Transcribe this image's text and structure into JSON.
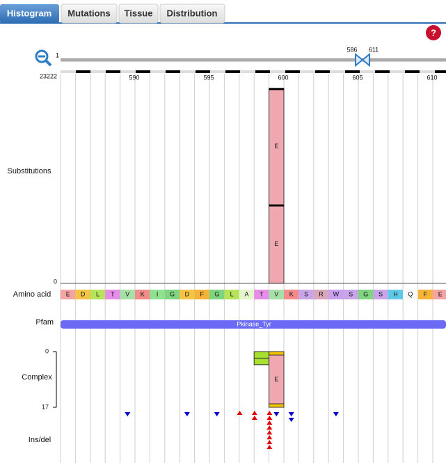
{
  "tabs": [
    "Histogram",
    "Mutations",
    "Tissue",
    "Distribution"
  ],
  "help": "?",
  "zoom": {
    "start_label": "1",
    "range": [
      586,
      611
    ]
  },
  "substitutions": {
    "label": "Substitutions",
    "xticks": [
      590,
      595,
      600,
      605,
      610
    ],
    "ylim": [
      0,
      23222
    ],
    "yticks": [
      0,
      23222
    ],
    "positions": [
      600
    ],
    "stacks": [
      [
        {
          "value": 8900,
          "label": "E"
        },
        {
          "value": 13150,
          "label": "E"
        }
      ]
    ],
    "color": "#f0a8b0"
  },
  "amino_acids": {
    "label": "Amino acid",
    "residues": [
      "E",
      "D",
      "L",
      "T",
      "V",
      "K",
      "I",
      "G",
      "D",
      "F",
      "G",
      "L",
      "A",
      "T",
      "V",
      "K",
      "S",
      "R",
      "W",
      "S",
      "G",
      "S",
      "H",
      "Q",
      "F",
      "E"
    ],
    "colors": {
      "E": "#f4a4a4",
      "D": "#f6c445",
      "L": "#b7e35a",
      "T": "#e58de8",
      "V": "#a7e0a7",
      "K": "#f28c8c",
      "I": "#8fe08f",
      "G": "#7fd47f",
      "F": "#f5b33a",
      "A": "#e4f6cc",
      "S": "#c8a4e8",
      "R": "#d8a8b8",
      "W": "#c8a0f0",
      "H": "#60c8e8",
      "Q": "#f8f8f8"
    }
  },
  "pfam": {
    "label": "Pfam",
    "domain": "Pkinase_Tyr",
    "color": "#6a6af5"
  },
  "complex": {
    "label": "Complex",
    "ylim": [
      0,
      17
    ],
    "yticks": [
      0,
      17
    ],
    "bars": [
      {
        "position": 599,
        "value": 4,
        "color": "#a8e030"
      },
      {
        "position": 600,
        "value": 17,
        "label": "E",
        "color": "#f0a8b0"
      }
    ]
  },
  "insdel": {
    "label": "Ins/del",
    "insertions": {
      "positions": [
        598,
        599,
        600
      ],
      "counts": [
        1,
        2,
        8
      ],
      "color": "#e00000"
    },
    "deletions": {
      "positions": [
        590,
        594,
        596,
        600,
        601,
        604
      ],
      "counts": [
        1,
        1,
        1,
        1,
        2,
        1
      ],
      "color": "#0000d0"
    }
  }
}
